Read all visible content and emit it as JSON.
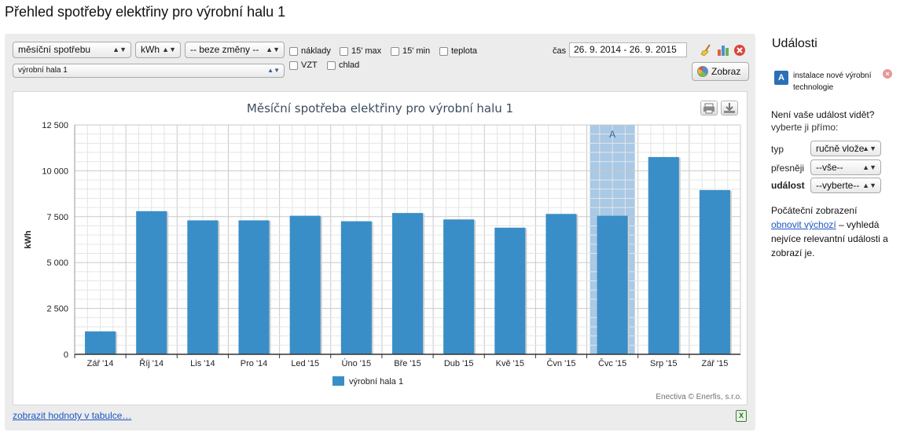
{
  "page": {
    "title": "Přehled spotřeby elektřiny pro výrobní halu 1"
  },
  "filters": {
    "metric_select": "měsíční spotřebu",
    "unit_select": "kWh",
    "change_select": "-- beze změny --",
    "location_select": "výrobní hala 1",
    "checkboxes": [
      "náklady",
      "15' max",
      "15' min",
      "teplota",
      "VZT",
      "chlad"
    ],
    "time_label": "čas",
    "date_range": "26. 9. 2014 - 26. 9. 2015",
    "show_button": "Zobraz"
  },
  "chart_data": {
    "type": "bar",
    "title": "Měsíční spotřeba elektřiny pro výrobní halu 1",
    "ylabel": "kWh",
    "xlabel": "",
    "ylim": [
      0,
      12500
    ],
    "yticks": [
      0,
      2500,
      5000,
      7500,
      10000,
      12500
    ],
    "ytick_labels": [
      "0",
      "2 500",
      "5 000",
      "7 500",
      "10 000",
      "12 500"
    ],
    "categories": [
      "Zář '14",
      "Říj '14",
      "Lis '14",
      "Pro '14",
      "Led '15",
      "Úno '15",
      "Bře '15",
      "Dub '15",
      "Kvě '15",
      "Čvn '15",
      "Čvc '15",
      "Srp '15",
      "Zář '15"
    ],
    "series": [
      {
        "name": "výrobní hala 1",
        "color": "#3a8ec7",
        "values": [
          1250,
          7800,
          7300,
          7300,
          7550,
          7250,
          7700,
          7350,
          6900,
          7650,
          7550,
          10750,
          8950
        ]
      }
    ],
    "highlight": {
      "category": "Čvc '15",
      "label": "A",
      "color": "#a9c9e6"
    },
    "grid": true,
    "legend": "bottom-center"
  },
  "chart_footer": {
    "credit": "Enectiva © Enerfis, s.r.o.",
    "table_link": "zobrazit hodnoty v tabulce…"
  },
  "sidebar": {
    "title": "Události",
    "event": {
      "badge": "A",
      "text": "instalace nové výrobní technologie"
    },
    "question": "Není vaše událost vidět?",
    "question_sub": "vyberte ji přímo:",
    "type_label": "typ",
    "type_value": "ručně vlože",
    "precise_label": "přesněji",
    "precise_value": "--vše--",
    "event_label": "událost",
    "event_value": "--vyberte--",
    "note_before": "Počáteční zobrazení",
    "note_link": "obnovit výchozí",
    "note_after": " – vyhledá nejvíce relevantní události a zobrazí je."
  },
  "colors": {
    "bar": "#3a8ec7",
    "highlight": "#a9c9e6",
    "link": "#1a55c2",
    "title": "#3d4d5f"
  },
  "icons": [
    "broom-icon",
    "bar-chart-icon",
    "close-icon",
    "pie-chart-icon",
    "print-icon",
    "download-icon",
    "excel-icon",
    "remove-event-icon"
  ]
}
